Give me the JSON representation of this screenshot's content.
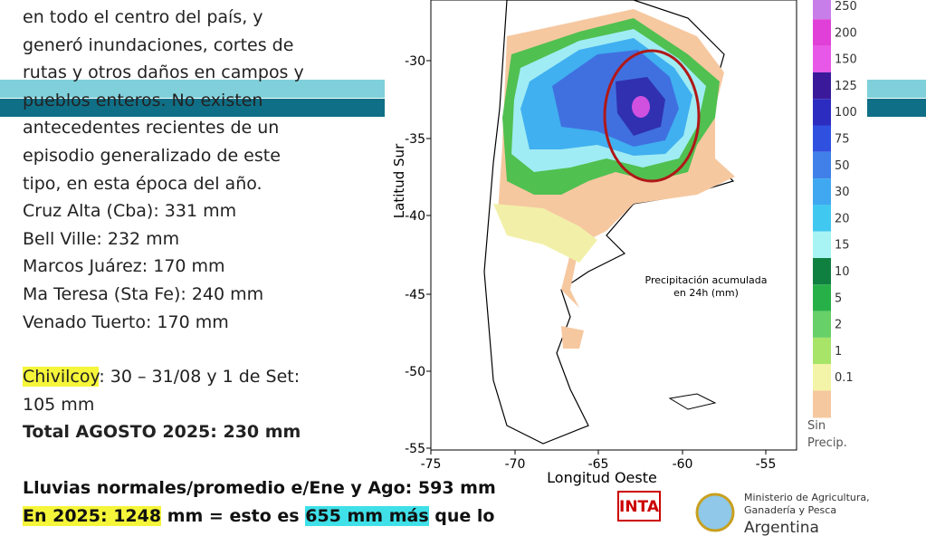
{
  "left_text": {
    "paragraph": [
      "en todo el centro del país, y",
      "generó inundaciones, cortes de",
      "rutas y otros daños en campos y",
      "pueblos enteros. No existen",
      "antecedentes recientes de un",
      "episodio generalizado de este",
      "tipo, en esta época del año."
    ],
    "stations": [
      "Cruz Alta (Cba): 331 mm",
      "Bell Ville: 232 mm",
      "Marcos Juárez: 170 mm",
      "Ma Teresa (Sta Fe): 240 mm",
      "Venado Tuerto: 170 mm"
    ],
    "chivilcoy": {
      "name": "Chivilcoy",
      "rest": ": 30 – 31/08 y 1 de Set:",
      "line2": "105 mm"
    },
    "total": "Total AGOSTO 2025: 230 mm"
  },
  "bottom": {
    "line1": "Lluvias normales/promedio e/Ene y Ago: 593 mm",
    "line2": {
      "highlight1": "En 2025: 1248",
      "mid": " mm = esto es ",
      "highlight2": "655 mm más",
      "end": " que lo"
    }
  },
  "map": {
    "y_axis_title": "Latitud Sur",
    "x_axis_title": "Longitud Oeste",
    "yticks": [
      -30,
      -35,
      -40,
      -45,
      -50,
      -55
    ],
    "xticks": [
      -75,
      -70,
      -65,
      -60,
      -55
    ],
    "annotation": [
      "Precipitación acumulada",
      "en 24h (mm)"
    ],
    "legend_labels": [
      "250",
      "200",
      "150",
      "125",
      "100",
      "75",
      "50",
      "30",
      "20",
      "15",
      "10",
      "5",
      "2",
      "1",
      "0.1"
    ],
    "legend_no_rain": [
      "Sin",
      "Precip."
    ]
  },
  "logos": {
    "inta": "INTA",
    "ministry": [
      "Ministerio de Agricultura,",
      "Ganadería y Pesca"
    ],
    "country": "Argentina"
  }
}
